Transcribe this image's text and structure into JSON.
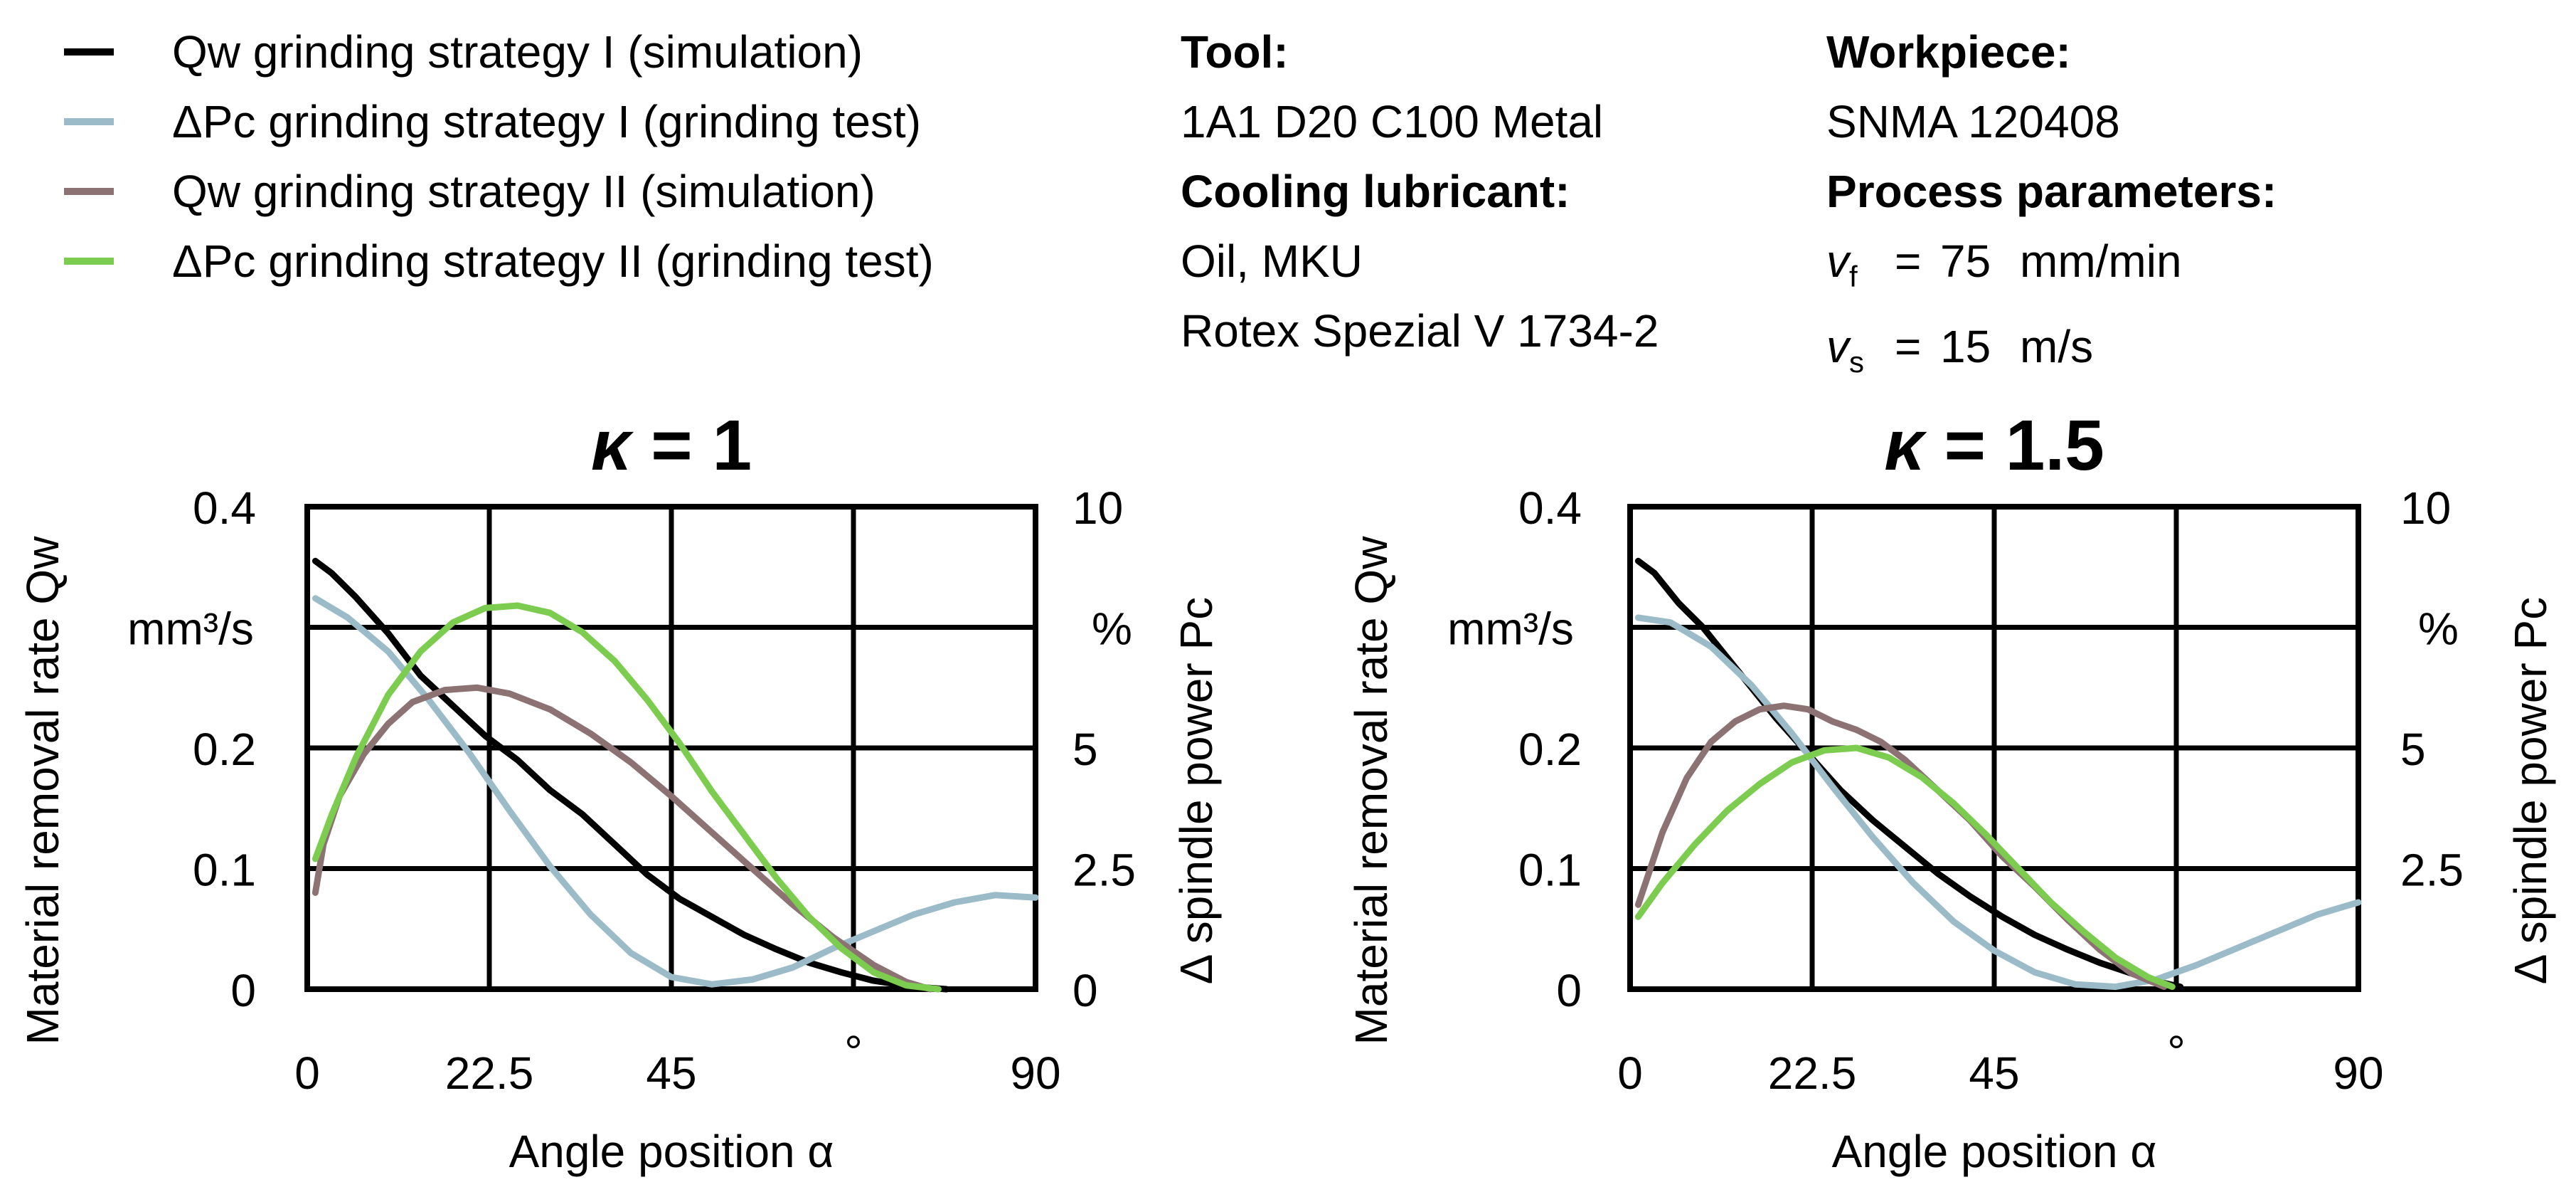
{
  "legend": [
    {
      "label": "Qw grinding strategy I (simulation)",
      "color": "#000000"
    },
    {
      "label": "ΔPc grinding strategy I (grinding test)",
      "color": "#9bbbc8"
    },
    {
      "label": "Qw grinding strategy II (simulation)",
      "color": "#8c7272"
    },
    {
      "label": "ΔPc grinding strategy II (grinding test)",
      "color": "#7ccc4f"
    }
  ],
  "info": {
    "tool_heading": "Tool:",
    "tool_value": "1A1 D20 C100 Metal",
    "cooling_heading": "Cooling lubricant:",
    "cooling_line1": "Oil, MKU",
    "cooling_line2": "Rotex Spezial V 1734-2",
    "workpiece_heading": "Workpiece:",
    "workpiece_value": "SNMA 120408",
    "process_heading": "Process parameters:",
    "params": [
      {
        "symbol": "v",
        "sub": "f",
        "eq": "=",
        "value": "75",
        "unit": "mm/min"
      },
      {
        "symbol": "v",
        "sub": "s",
        "eq": "=",
        "value": "15",
        "unit": "m/s"
      }
    ]
  },
  "chart_data": [
    {
      "type": "line",
      "title": "κ = 1",
      "xlabel": "Angle position α",
      "ylabel": "Material removal rate Qw",
      "yunit": "mm³/s",
      "y2label": "Δ spindle power Pc",
      "y2unit": "%",
      "xunit": "°",
      "xlim": [
        0,
        90
      ],
      "ylim": [
        0,
        0.4
      ],
      "y2lim": [
        0,
        10
      ],
      "x_ticks": [
        "0",
        "22.5",
        "45",
        "90"
      ],
      "y_ticks": [
        "0",
        "0.1",
        "0.2",
        "0.4"
      ],
      "y2_ticks": [
        "0",
        "2.5",
        "5",
        "10"
      ],
      "grid": true,
      "series": [
        {
          "name": "Qw grinding strategy I (simulation)",
          "axis": "left",
          "color": "#000000",
          "x": [
            1,
            3,
            6,
            10,
            14,
            18,
            22,
            26,
            30,
            34,
            38,
            42,
            46,
            50,
            54,
            58,
            62,
            66,
            70,
            75,
            79
          ],
          "y": [
            0.355,
            0.345,
            0.325,
            0.295,
            0.26,
            0.235,
            0.21,
            0.19,
            0.165,
            0.145,
            0.12,
            0.095,
            0.075,
            0.06,
            0.045,
            0.033,
            0.022,
            0.014,
            0.007,
            0.002,
            0.0
          ]
        },
        {
          "name": "ΔPc grinding strategy I (grinding test)",
          "axis": "right",
          "color": "#9bbbc8",
          "x": [
            1,
            5,
            10,
            15,
            20,
            25,
            30,
            35,
            40,
            45,
            50,
            55,
            60,
            65,
            70,
            75,
            80,
            85,
            90
          ],
          "y": [
            8.1,
            7.7,
            7.0,
            6.0,
            4.9,
            3.7,
            2.55,
            1.55,
            0.75,
            0.25,
            0.1,
            0.2,
            0.45,
            0.85,
            1.2,
            1.55,
            1.8,
            1.95,
            1.9
          ]
        },
        {
          "name": "Qw grinding strategy II (simulation)",
          "axis": "left",
          "color": "#8c7272",
          "x": [
            1,
            2,
            4,
            7,
            10,
            13,
            17,
            21,
            25,
            30,
            35,
            40,
            45,
            50,
            55,
            60,
            65,
            70,
            74,
            77
          ],
          "y": [
            0.08,
            0.12,
            0.16,
            0.195,
            0.22,
            0.238,
            0.248,
            0.25,
            0.245,
            0.232,
            0.212,
            0.188,
            0.16,
            0.13,
            0.1,
            0.07,
            0.043,
            0.02,
            0.006,
            0.0
          ]
        },
        {
          "name": "ΔPc grinding strategy II (grinding test)",
          "axis": "right",
          "color": "#7ccc4f",
          "x": [
            1,
            3,
            6,
            10,
            14,
            18,
            22,
            26,
            30,
            34,
            38,
            42,
            46,
            50,
            54,
            58,
            62,
            66,
            70,
            74,
            78
          ],
          "y": [
            2.7,
            3.6,
            4.8,
            6.1,
            7.0,
            7.6,
            7.9,
            7.95,
            7.8,
            7.4,
            6.8,
            6.0,
            5.1,
            4.1,
            3.2,
            2.3,
            1.5,
            0.85,
            0.35,
            0.08,
            0.0
          ]
        }
      ]
    },
    {
      "type": "line",
      "title": "κ = 1.5",
      "xlabel": "Angle position α",
      "ylabel": "Material removal rate Qw",
      "yunit": "mm³/s",
      "y2label": "Δ spindle power Pc",
      "y2unit": "%",
      "xunit": "°",
      "xlim": [
        0,
        90
      ],
      "ylim": [
        0,
        0.4
      ],
      "y2lim": [
        0,
        10
      ],
      "x_ticks": [
        "0",
        "22.5",
        "45",
        "90"
      ],
      "y_ticks": [
        "0",
        "0.1",
        "0.2",
        "0.4"
      ],
      "y2_ticks": [
        "2.5",
        "5",
        "10"
      ],
      "grid": true,
      "series": [
        {
          "name": "Qw grinding strategy I (simulation)",
          "axis": "left",
          "color": "#000000",
          "x": [
            1,
            3,
            6,
            9,
            12,
            15,
            18,
            22,
            26,
            30,
            34,
            38,
            42,
            46,
            50,
            54,
            58,
            62,
            66,
            68
          ],
          "y": [
            0.355,
            0.345,
            0.32,
            0.3,
            0.275,
            0.25,
            0.225,
            0.195,
            0.165,
            0.14,
            0.118,
            0.096,
            0.077,
            0.06,
            0.045,
            0.033,
            0.022,
            0.013,
            0.005,
            0.002
          ]
        },
        {
          "name": "ΔPc grinding strategy I (grinding test)",
          "axis": "right",
          "color": "#9bbbc8",
          "x": [
            1,
            5,
            10,
            15,
            20,
            25,
            30,
            35,
            40,
            45,
            50,
            55,
            60,
            65,
            70,
            75,
            80,
            85,
            90
          ],
          "y": [
            7.7,
            7.6,
            7.1,
            6.3,
            5.3,
            4.2,
            3.15,
            2.2,
            1.4,
            0.8,
            0.35,
            0.1,
            0.05,
            0.2,
            0.5,
            0.85,
            1.2,
            1.55,
            1.8
          ]
        },
        {
          "name": "Qw grinding strategy II (simulation)",
          "axis": "left",
          "color": "#8c7272",
          "x": [
            1,
            2,
            4,
            7,
            10,
            13,
            16,
            19,
            22,
            25,
            28,
            31,
            34,
            38,
            42,
            46,
            50,
            54,
            58,
            62,
            66
          ],
          "y": [
            0.07,
            0.09,
            0.13,
            0.175,
            0.205,
            0.222,
            0.232,
            0.235,
            0.232,
            0.222,
            0.215,
            0.205,
            0.19,
            0.165,
            0.14,
            0.11,
            0.085,
            0.058,
            0.033,
            0.013,
            0.002
          ]
        },
        {
          "name": "ΔPc grinding strategy II (grinding test)",
          "axis": "right",
          "color": "#7ccc4f",
          "x": [
            1,
            4,
            8,
            12,
            16,
            20,
            24,
            28,
            32,
            36,
            40,
            44,
            48,
            52,
            56,
            60,
            64,
            67
          ],
          "y": [
            1.5,
            2.2,
            3.0,
            3.7,
            4.25,
            4.7,
            4.95,
            5.0,
            4.8,
            4.4,
            3.85,
            3.2,
            2.5,
            1.8,
            1.2,
            0.65,
            0.25,
            0.05
          ]
        }
      ]
    }
  ]
}
